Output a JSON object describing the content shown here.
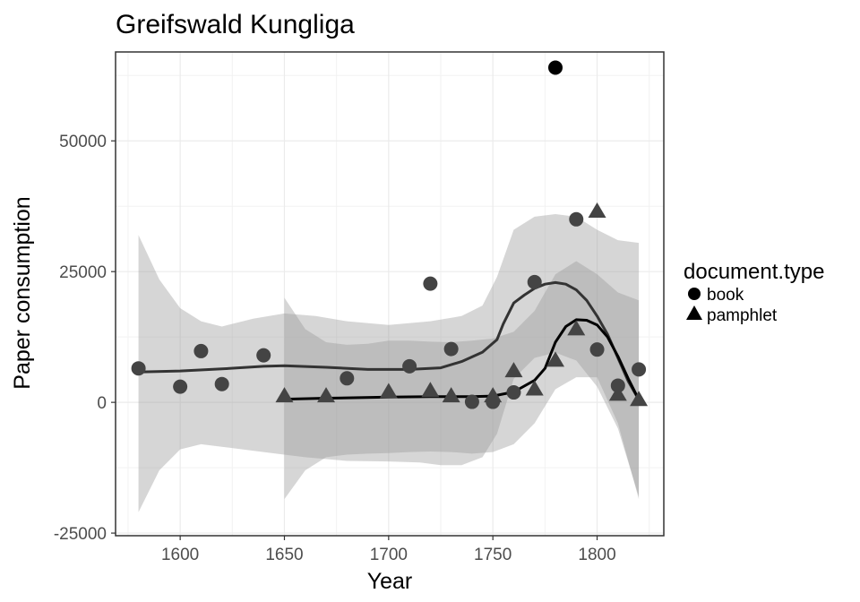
{
  "chart_data": {
    "type": "scatter",
    "title": "Greifswald Kungliga",
    "xlabel": "Year",
    "ylabel": "Paper consumption",
    "xlim": [
      1569,
      1832
    ],
    "ylim": [
      -25500,
      67000
    ],
    "x_ticks": [
      1600,
      1650,
      1700,
      1750,
      1800
    ],
    "y_ticks": [
      -25000,
      0,
      25000,
      50000
    ],
    "y_tick_labels": [
      "-25000",
      "0",
      "25000",
      "50000"
    ],
    "grid": true,
    "legend": {
      "title": "document.type",
      "position": "right",
      "entries": [
        {
          "label": "book",
          "shape": "circle"
        },
        {
          "label": "pamphlet",
          "shape": "triangle"
        }
      ]
    },
    "series": [
      {
        "name": "book",
        "shape": "circle",
        "points": [
          [
            1580,
            6500
          ],
          [
            1600,
            3000
          ],
          [
            1610,
            9800
          ],
          [
            1620,
            3500
          ],
          [
            1640,
            9000
          ],
          [
            1680,
            4600
          ],
          [
            1710,
            6900
          ],
          [
            1720,
            22700
          ],
          [
            1730,
            10200
          ],
          [
            1740,
            100
          ],
          [
            1750,
            100
          ],
          [
            1760,
            1900
          ],
          [
            1770,
            23000
          ],
          [
            1780,
            64000
          ],
          [
            1790,
            35000
          ],
          [
            1800,
            10100
          ],
          [
            1810,
            3200
          ],
          [
            1820,
            6300
          ]
        ],
        "smooth": [
          [
            1580,
            5800
          ],
          [
            1600,
            6000
          ],
          [
            1620,
            6400
          ],
          [
            1640,
            6900
          ],
          [
            1650,
            7000
          ],
          [
            1670,
            6700
          ],
          [
            1690,
            6300
          ],
          [
            1710,
            6300
          ],
          [
            1725,
            6600
          ],
          [
            1735,
            7800
          ],
          [
            1745,
            9600
          ],
          [
            1752,
            12000
          ],
          [
            1755,
            15000
          ],
          [
            1760,
            19000
          ],
          [
            1765,
            20500
          ],
          [
            1770,
            21800
          ],
          [
            1775,
            22600
          ],
          [
            1780,
            22900
          ],
          [
            1785,
            22600
          ],
          [
            1790,
            21500
          ],
          [
            1795,
            19500
          ],
          [
            1800,
            16500
          ],
          [
            1805,
            13000
          ],
          [
            1810,
            8500
          ],
          [
            1815,
            4000
          ],
          [
            1820,
            500
          ]
        ],
        "band_upper": [
          [
            1580,
            32000
          ],
          [
            1590,
            23500
          ],
          [
            1600,
            18000
          ],
          [
            1610,
            15500
          ],
          [
            1620,
            14500
          ],
          [
            1635,
            16000
          ],
          [
            1650,
            17000
          ],
          [
            1665,
            16500
          ],
          [
            1680,
            15500
          ],
          [
            1700,
            14800
          ],
          [
            1720,
            15500
          ],
          [
            1735,
            16500
          ],
          [
            1745,
            18500
          ],
          [
            1752,
            24000
          ],
          [
            1760,
            33000
          ],
          [
            1770,
            35500
          ],
          [
            1780,
            36000
          ],
          [
            1790,
            35500
          ],
          [
            1800,
            33000
          ],
          [
            1810,
            31000
          ],
          [
            1820,
            30500
          ]
        ],
        "band_lower": [
          [
            1580,
            -21000
          ],
          [
            1590,
            -13000
          ],
          [
            1600,
            -9000
          ],
          [
            1610,
            -8000
          ],
          [
            1620,
            -8500
          ],
          [
            1640,
            -9500
          ],
          [
            1660,
            -10500
          ],
          [
            1680,
            -11200
          ],
          [
            1700,
            -11300
          ],
          [
            1715,
            -11500
          ],
          [
            1725,
            -12000
          ],
          [
            1735,
            -12000
          ],
          [
            1745,
            -10500
          ],
          [
            1752,
            -6000
          ],
          [
            1760,
            4500
          ],
          [
            1770,
            8500
          ],
          [
            1780,
            9500
          ],
          [
            1790,
            8000
          ],
          [
            1800,
            3000
          ],
          [
            1810,
            -5000
          ],
          [
            1820,
            -18000
          ]
        ]
      },
      {
        "name": "pamphlet",
        "shape": "triangle",
        "points": [
          [
            1650,
            1200
          ],
          [
            1670,
            1200
          ],
          [
            1700,
            2000
          ],
          [
            1720,
            2200
          ],
          [
            1730,
            1200
          ],
          [
            1750,
            1200
          ],
          [
            1760,
            6000
          ],
          [
            1770,
            2500
          ],
          [
            1780,
            8000
          ],
          [
            1790,
            14000
          ],
          [
            1800,
            36500
          ],
          [
            1810,
            1500
          ],
          [
            1820,
            500
          ]
        ],
        "smooth": [
          [
            1650,
            600
          ],
          [
            1670,
            800
          ],
          [
            1700,
            1000
          ],
          [
            1720,
            1100
          ],
          [
            1740,
            1100
          ],
          [
            1750,
            1200
          ],
          [
            1760,
            2000
          ],
          [
            1770,
            4200
          ],
          [
            1775,
            6500
          ],
          [
            1780,
            11500
          ],
          [
            1785,
            14500
          ],
          [
            1790,
            15800
          ],
          [
            1795,
            15700
          ],
          [
            1800,
            14800
          ],
          [
            1805,
            12500
          ],
          [
            1810,
            8800
          ],
          [
            1815,
            4500
          ],
          [
            1820,
            500
          ]
        ],
        "band_upper": [
          [
            1650,
            20000
          ],
          [
            1660,
            14000
          ],
          [
            1670,
            11500
          ],
          [
            1680,
            11000
          ],
          [
            1690,
            11200
          ],
          [
            1700,
            11800
          ],
          [
            1710,
            11800
          ],
          [
            1720,
            11600
          ],
          [
            1730,
            11500
          ],
          [
            1740,
            11800
          ],
          [
            1750,
            12200
          ],
          [
            1760,
            13500
          ],
          [
            1770,
            17500
          ],
          [
            1780,
            24500
          ],
          [
            1790,
            27000
          ],
          [
            1800,
            24500
          ],
          [
            1810,
            21000
          ],
          [
            1820,
            19500
          ]
        ],
        "band_lower": [
          [
            1650,
            -18500
          ],
          [
            1660,
            -13000
          ],
          [
            1670,
            -10500
          ],
          [
            1680,
            -10000
          ],
          [
            1690,
            -9800
          ],
          [
            1700,
            -9700
          ],
          [
            1710,
            -9500
          ],
          [
            1720,
            -9400
          ],
          [
            1730,
            -9500
          ],
          [
            1740,
            -9800
          ],
          [
            1750,
            -9500
          ],
          [
            1760,
            -8000
          ],
          [
            1770,
            -4000
          ],
          [
            1780,
            2500
          ],
          [
            1790,
            4800
          ],
          [
            1800,
            4800
          ],
          [
            1810,
            -4000
          ],
          [
            1820,
            -18500
          ]
        ]
      }
    ]
  }
}
